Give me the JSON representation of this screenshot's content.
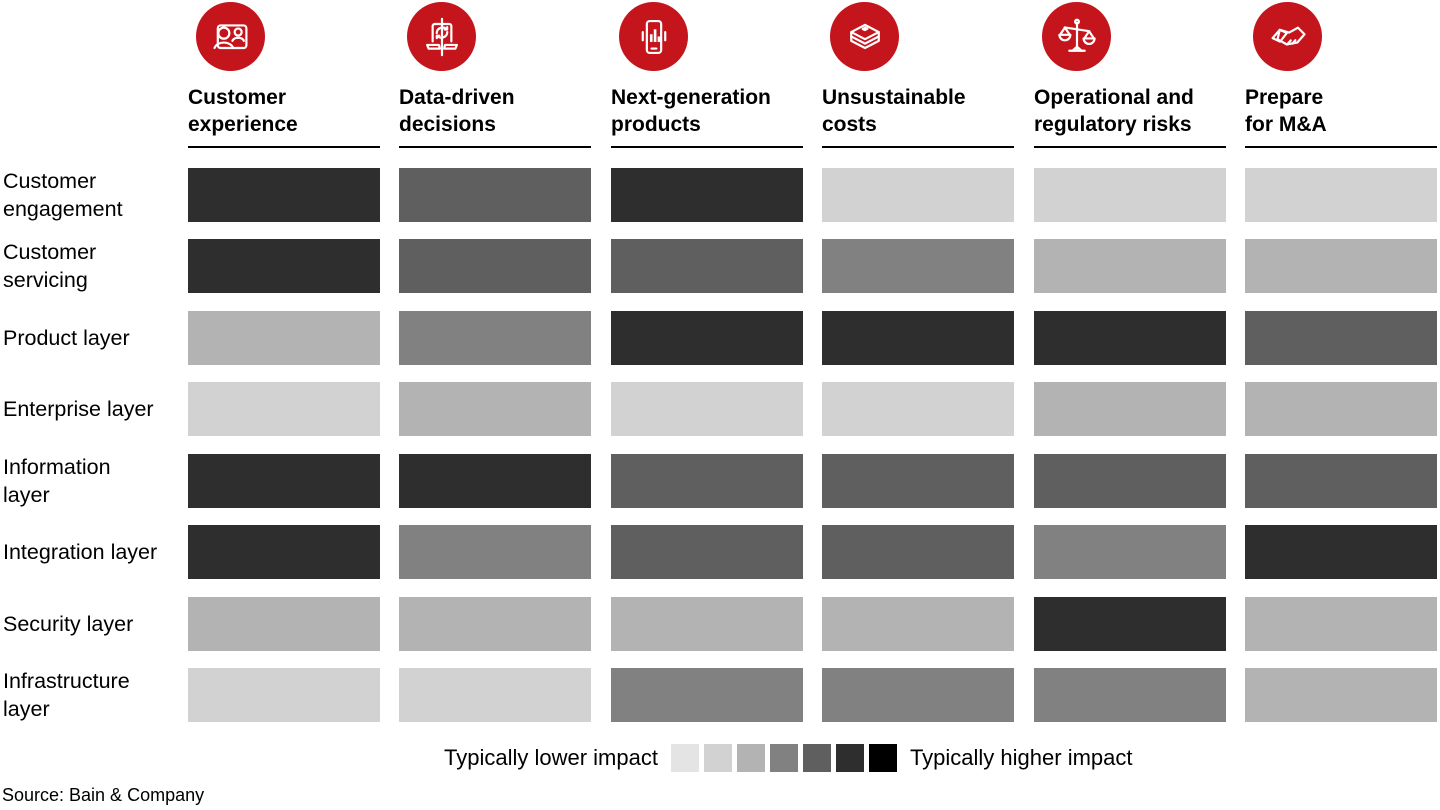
{
  "colors": {
    "accent_red": "#c4141c",
    "text": "#000000",
    "background": "#ffffff"
  },
  "columns": [
    {
      "label": "Customer\nexperience",
      "icon": "customer-experience-icon"
    },
    {
      "label": "Data-driven\ndecisions",
      "icon": "data-sync-laptop-icon"
    },
    {
      "label": "Next-generation\nproducts",
      "icon": "phone-chart-icon"
    },
    {
      "label": "Unsustainable\ncosts",
      "icon": "banknote-stack-icon"
    },
    {
      "label": "Operational and\nregulatory risks",
      "icon": "scales-icon"
    },
    {
      "label": "Prepare\nfor M&A",
      "icon": "handshake-icon"
    }
  ],
  "rows": [
    {
      "label": "Customer\nengagement"
    },
    {
      "label": "Customer\nservicing"
    },
    {
      "label": "Product layer"
    },
    {
      "label": "Enterprise layer"
    },
    {
      "label": "Information\nlayer"
    },
    {
      "label": "Integration layer"
    },
    {
      "label": "Security layer"
    },
    {
      "label": "Infrastructure\nlayer"
    }
  ],
  "legend": {
    "lower_label": "Typically lower impact",
    "higher_label": "Typically higher impact"
  },
  "source": "Source: Bain & Company",
  "chart_data": {
    "type": "heatmap",
    "title": "",
    "columns": [
      "Customer experience",
      "Data-driven decisions",
      "Next-generation products",
      "Unsustainable costs",
      "Operational and regulatory risks",
      "Prepare for M&A"
    ],
    "rows": [
      "Customer engagement",
      "Customer servicing",
      "Product layer",
      "Enterprise layer",
      "Information layer",
      "Integration layer",
      "Security layer",
      "Infrastructure layer"
    ],
    "scale": "1 = typically lower impact … 7 = typically higher impact",
    "palette": [
      "#e4e4e4",
      "#d2d2d2",
      "#b3b3b3",
      "#818181",
      "#5f5f5f",
      "#2e2e2e",
      "#000000"
    ],
    "values": [
      [
        6,
        5,
        6,
        2,
        2,
        2
      ],
      [
        6,
        5,
        5,
        4,
        3,
        3
      ],
      [
        3,
        4,
        6,
        6,
        6,
        5
      ],
      [
        2,
        3,
        2,
        2,
        3,
        3
      ],
      [
        6,
        6,
        5,
        5,
        5,
        5
      ],
      [
        6,
        4,
        5,
        5,
        4,
        6
      ],
      [
        3,
        3,
        3,
        3,
        6,
        3
      ],
      [
        2,
        2,
        4,
        4,
        4,
        3
      ]
    ],
    "legend_position": "bottom-center",
    "grid": false
  }
}
